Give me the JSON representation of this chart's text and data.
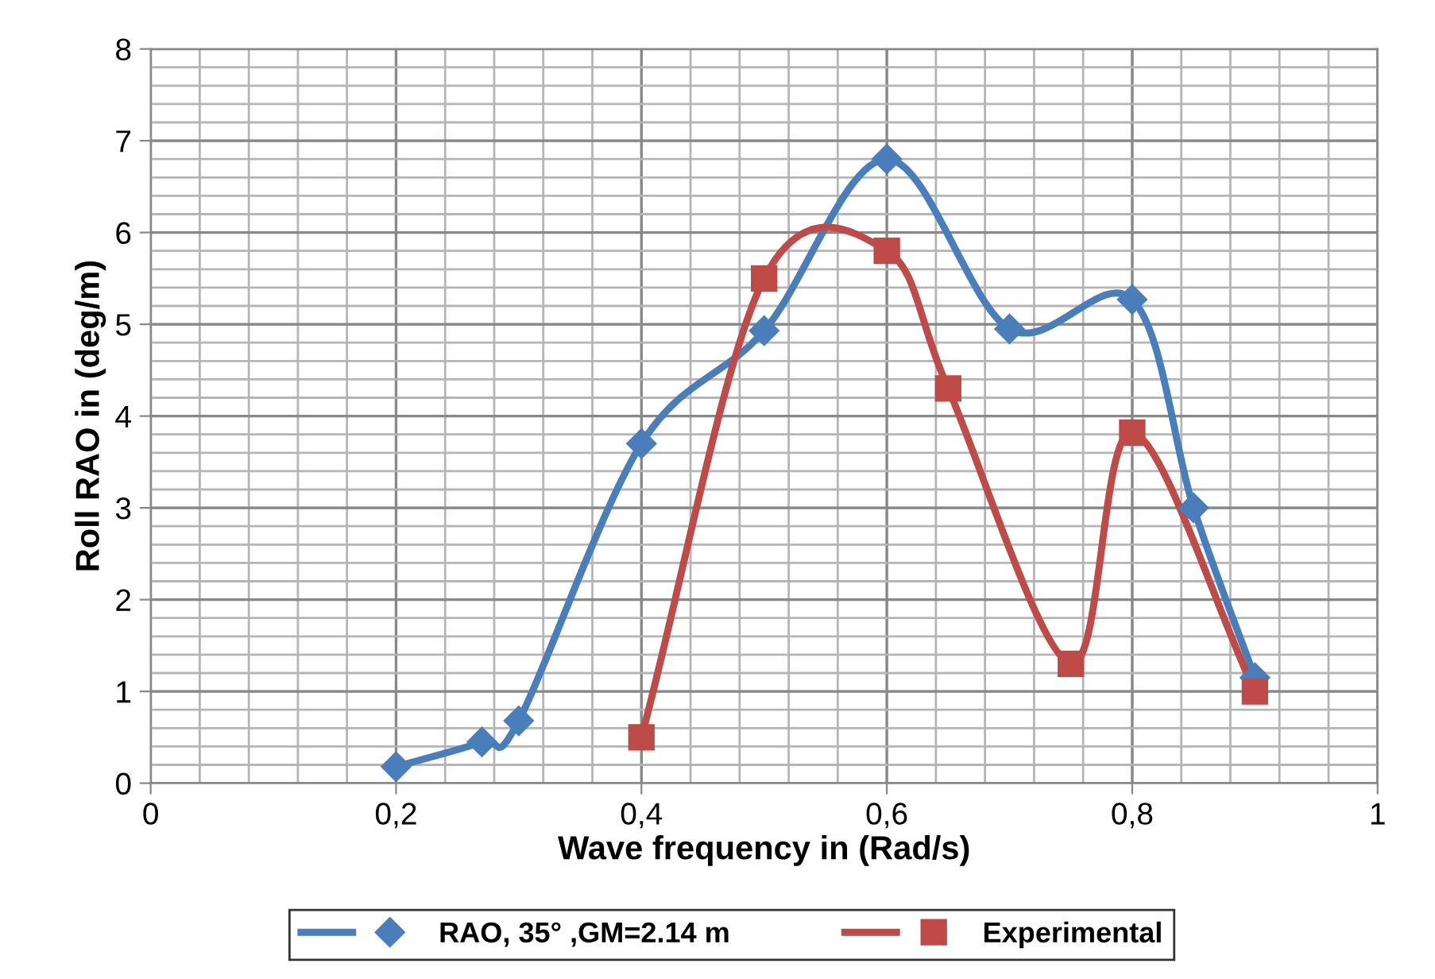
{
  "chart_data": {
    "type": "line",
    "xlabel": "Wave frequency in (Rad/s)",
    "ylabel": "Roll RAO in (deg/m)",
    "xlim": [
      0,
      1
    ],
    "xticks": [
      {
        "value": 0,
        "label": "0"
      },
      {
        "value": 0.2,
        "label": "0,2"
      },
      {
        "value": 0.4,
        "label": "0,4"
      },
      {
        "value": 0.6,
        "label": "0,6"
      },
      {
        "value": 0.8,
        "label": "0,8"
      },
      {
        "value": 1,
        "label": "1"
      }
    ],
    "ylim": [
      0,
      8
    ],
    "yticks": [
      0,
      1,
      2,
      3,
      4,
      5,
      6,
      7,
      8
    ],
    "grid": true,
    "legend": "bottom",
    "series": [
      {
        "name": "RAO, 35° ,GM=2.14 m",
        "color": "#4a7ebb",
        "marker": "diamond",
        "x": [
          0.2,
          0.27,
          0.3,
          0.4,
          0.5,
          0.6,
          0.7,
          0.8,
          0.85,
          0.9
        ],
        "values": [
          0.18,
          0.45,
          0.68,
          3.7,
          4.93,
          6.8,
          4.95,
          5.27,
          3.0,
          1.15
        ]
      },
      {
        "name": "Experimental",
        "color": "#be4b48",
        "marker": "square",
        "x": [
          0.4,
          0.5,
          0.6,
          0.65,
          0.75,
          0.8,
          0.9
        ],
        "values": [
          0.5,
          5.5,
          5.8,
          4.3,
          1.3,
          3.82,
          1.0
        ]
      }
    ]
  }
}
